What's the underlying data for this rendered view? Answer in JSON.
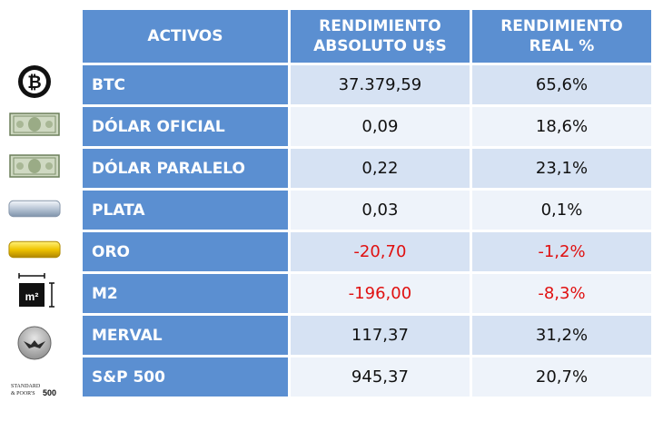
{
  "header": {
    "col1": "ACTIVOS",
    "col2_line1": "RENDIMIENTO",
    "col2_line2": "ABSOLUTO U$S",
    "col3_line1": "RENDIMIENTO",
    "col3_line2": "REAL %"
  },
  "rows": [
    {
      "asset": "BTC",
      "absolute": "37.379,59",
      "real": "65,6%",
      "icon": "bitcoin-icon"
    },
    {
      "asset": "DÓLAR OFICIAL",
      "absolute": "0,09",
      "real": "18,6%",
      "icon": "dollar-bill-icon"
    },
    {
      "asset": "DÓLAR PARALELO",
      "absolute": "0,22",
      "real": "23,1%",
      "icon": "dollar-bill-icon"
    },
    {
      "asset": "PLATA",
      "absolute": "0,03",
      "real": "0,1%",
      "icon": "silver-bar-icon"
    },
    {
      "asset": "ORO",
      "absolute": "-20,70",
      "real": "-1,2%",
      "icon": "gold-bar-icon"
    },
    {
      "asset": "M2",
      "absolute": "-196,00",
      "real": "-8,3%",
      "icon": "square-meter-icon"
    },
    {
      "asset": "MERVAL",
      "absolute": "117,37",
      "real": "31,2%",
      "icon": "merval-bull-icon"
    },
    {
      "asset": "S&P 500",
      "absolute": "945,37",
      "real": "20,7%",
      "icon": "sp500-logo-icon"
    }
  ],
  "icon_text": {
    "m2": "m²",
    "sp_line1": "STANDARD",
    "sp_line2": "& POOR'S",
    "sp_num": "500"
  },
  "colors": {
    "header_blue": "#5b8fd1",
    "row_even": "#d6e2f3",
    "row_odd": "#eef3fa",
    "negative": "#e01010"
  }
}
